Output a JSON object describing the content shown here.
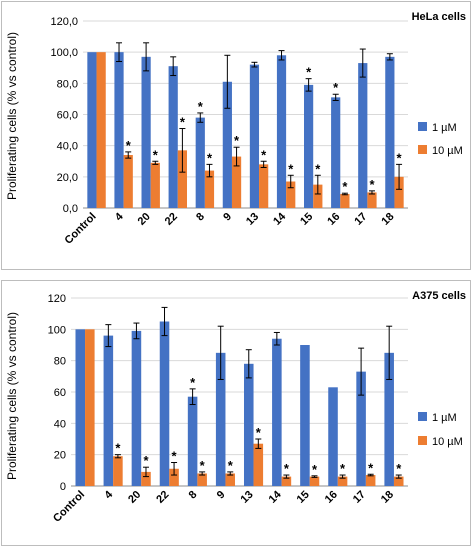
{
  "colors": {
    "series_1uM": "#4472C4",
    "series_10uM": "#ED7D31",
    "errorbar": "#000000"
  },
  "chart_data": [
    {
      "type": "bar",
      "title": "HeLa cells",
      "ylabel": "Proliferating cells (% vs control)",
      "xlabel": "",
      "ylim": [
        0,
        120
      ],
      "yticks": [
        "0,0",
        "20,0",
        "40,0",
        "60,0",
        "80,0",
        "100,0",
        "120,0"
      ],
      "ytick_values": [
        0,
        20,
        40,
        60,
        80,
        100,
        120
      ],
      "categories": [
        "Control",
        "4",
        "20",
        "22",
        "8",
        "9",
        "13",
        "14",
        "15",
        "16",
        "17",
        "18"
      ],
      "legend_position": "right",
      "series": [
        {
          "name": "1 µM",
          "color_key": "series_1uM",
          "values": [
            100,
            100,
            97,
            91,
            58,
            81,
            92,
            98,
            79,
            71,
            93,
            97
          ],
          "errors": [
            0,
            6,
            9,
            6,
            3,
            17,
            1.5,
            3,
            4,
            2,
            9,
            2
          ],
          "stars": [
            false,
            false,
            false,
            false,
            true,
            false,
            false,
            false,
            true,
            true,
            false,
            false
          ]
        },
        {
          "name": "10 µM",
          "color_key": "series_10uM",
          "values": [
            100,
            34,
            29,
            37,
            24,
            33,
            28,
            17,
            15,
            9,
            10,
            20
          ],
          "errors": [
            0,
            2,
            1,
            14,
            4,
            6,
            2,
            4,
            6,
            0.5,
            1,
            8
          ],
          "stars": [
            false,
            true,
            true,
            true,
            true,
            true,
            true,
            true,
            true,
            true,
            true,
            true
          ]
        }
      ]
    },
    {
      "type": "bar",
      "title": "A375 cells",
      "ylabel": "Proliferating cells (% vs control)",
      "xlabel": "",
      "ylim": [
        0,
        120
      ],
      "yticks": [
        "0",
        "20",
        "40",
        "60",
        "80",
        "100",
        "120"
      ],
      "ytick_values": [
        0,
        20,
        40,
        60,
        80,
        100,
        120
      ],
      "categories": [
        "Control",
        "4",
        "20",
        "22",
        "8",
        "9",
        "13",
        "14",
        "15",
        "16",
        "17",
        "18"
      ],
      "legend_position": "right",
      "series": [
        {
          "name": "1 µM",
          "color_key": "series_1uM",
          "values": [
            100,
            96,
            99,
            105,
            57,
            85,
            78,
            94,
            90,
            63,
            73,
            85
          ],
          "errors": [
            0,
            7,
            5,
            9,
            5,
            17,
            9,
            4,
            0,
            0,
            15,
            17
          ],
          "stars": [
            false,
            false,
            false,
            false,
            true,
            false,
            false,
            false,
            false,
            false,
            false,
            false
          ]
        },
        {
          "name": "10 µM",
          "color_key": "series_10uM",
          "values": [
            100,
            19,
            9,
            11,
            8,
            8,
            27,
            6,
            6,
            6,
            7,
            6
          ],
          "errors": [
            0,
            1,
            3,
            4,
            1,
            1,
            3,
            1,
            0.5,
            1,
            0.5,
            1
          ],
          "stars": [
            false,
            true,
            true,
            true,
            true,
            true,
            true,
            true,
            true,
            true,
            true,
            true
          ]
        }
      ]
    }
  ]
}
